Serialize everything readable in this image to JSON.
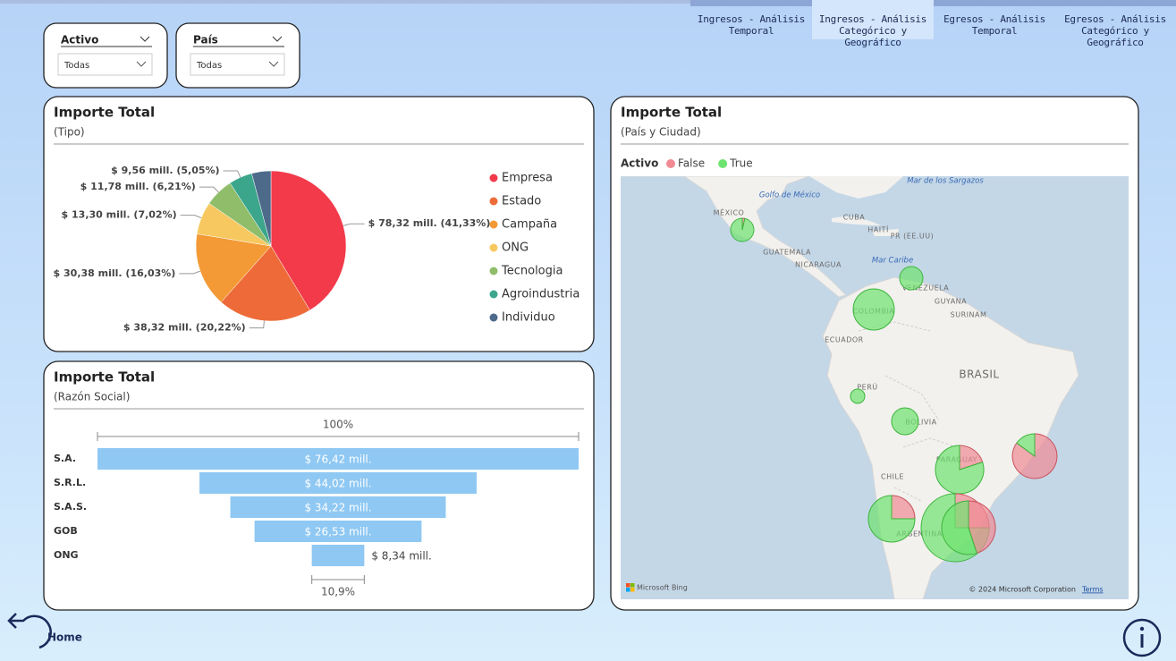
{
  "tabs": [
    "Ingresos - Análisis Temporal",
    "Ingresos - Análisis Categórico y Geográfico",
    "Egresos - Análisis Temporal",
    "Egresos - Análisis Categórico y Geográfico"
  ],
  "filters": [
    {
      "label": "Activo",
      "value": "Todas"
    },
    {
      "label": "País",
      "value": "Todas"
    }
  ],
  "home": "Home",
  "chart_data": [
    {
      "type": "pie",
      "title": "Importe Total",
      "subtitle": "(Tipo)",
      "categories": [
        "Empresa",
        "Estado",
        "Campaña",
        "ONG",
        "Tecnologia",
        "Agroindustria",
        "Individuo"
      ],
      "values": [
        78.32,
        38.32,
        30.38,
        13.3,
        11.78,
        9.56,
        7.85
      ],
      "value_labels": [
        "$ 78,32 mill. (41,33%)",
        "$ 38,32 mill. (20,22%)",
        "$ 30,38 mill. (16,03%)",
        "$ 13,30 mill. (7,02%)",
        "$ 11,78 mill. (6,21%)",
        "$ 9,56 mill. (5,05%)",
        null
      ],
      "colors": [
        "#f23a4b",
        "#ee6b39",
        "#f39a36",
        "#f6c85f",
        "#8fbd6a",
        "#3ba68b",
        "#4d6a8b"
      ]
    },
    {
      "type": "funnel",
      "title": "Importe Total",
      "subtitle": "(Razón Social)",
      "categories": [
        "S.A.",
        "S.R.L.",
        "S.A.S.",
        "GOB",
        "ONG"
      ],
      "values": [
        76.42,
        44.02,
        34.22,
        26.53,
        8.34
      ],
      "value_labels": [
        "$ 76,42 mill.",
        "$ 44,02 mill.",
        "$ 34,22 mill.",
        "$ 26,53 mill.",
        "$ 8,34 mill."
      ],
      "color": "#8fc8f3",
      "first_pct": {
        "value": 100,
        "label": "100%"
      },
      "last_pct": {
        "value": 10.9,
        "label": "10,9%"
      }
    },
    {
      "type": "map-pie",
      "title": "Importe Total",
      "subtitle": "(País y Ciudad)",
      "legend_title": "Activo",
      "series": [
        {
          "name": "False",
          "color": "#f08a93",
          "values": [
            0.2,
            0,
            0,
            0,
            0,
            5.0,
            18.2,
            5.8,
            12.4,
            13.9
          ]
        },
        {
          "name": "True",
          "color": "#6fe36f",
          "values": [
            5.6,
            5.8,
            18.1,
            2.2,
            7.7,
            20.0,
            3.2,
            17.4,
            37.1,
            17.0
          ]
        }
      ],
      "map_labels": [
        "Mar de los Sargazos",
        "Golfo de México",
        "MÉXICO",
        "CUBA",
        "HAITÍ",
        "PR (EE.UU)",
        "GUATEMALA",
        "NICARAGUA",
        "Mar Caribe",
        "VENEZUELA",
        "GUYANA",
        "SURINAM",
        "COLOMBIA",
        "ECUADOR",
        "BRASIL",
        "PERÚ",
        "BOLIVIA",
        "PARAGUAY",
        "CHILE",
        "ARGENTINA"
      ],
      "attribution": "Microsoft Bing",
      "copyright": "© 2024 Microsoft Corporation",
      "terms": "Terms"
    }
  ]
}
